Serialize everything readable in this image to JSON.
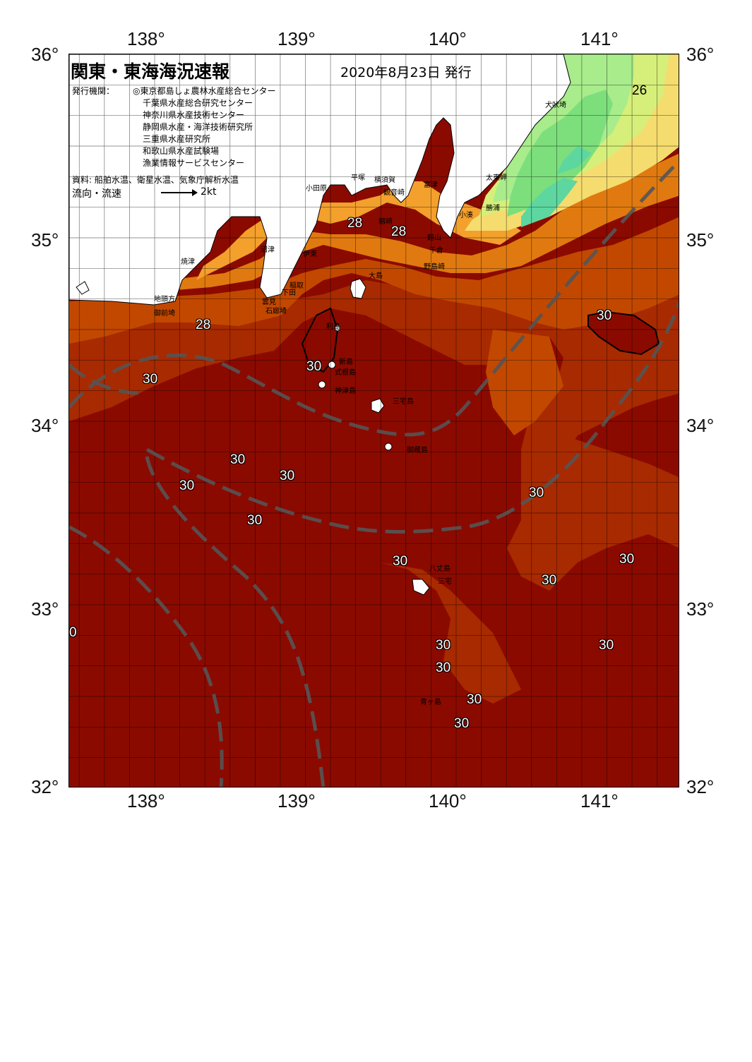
{
  "header": {
    "title": "関東・東海海況速報",
    "date": "2020年8月23日 発行",
    "agency_label": "発行機関：",
    "agencies": [
      "◎東京都島しょ農林水産総合センター",
      "千葉県水産総合研究センター",
      "神奈川県水産技術センター",
      "静岡県水産・海洋技術研究所",
      "三重県水産研究所",
      "和歌山県水産試験場",
      "漁業情報サービスセンター"
    ],
    "source": "資料: 船舶水温、衛星水温、気象庁解析水温",
    "flow_label": "流向・流速",
    "flow_scale": "2kt"
  },
  "axes": {
    "lon_top": [
      "138°",
      "139°",
      "140°",
      "141°"
    ],
    "lon_bottom": [
      "138°",
      "139°",
      "140°",
      "141°"
    ],
    "lat_left": [
      "36°",
      "35°",
      "34°",
      "33°",
      "32°"
    ],
    "lat_right": [
      "36°",
      "35°",
      "34°",
      "33°",
      "32°"
    ]
  },
  "temperature_labels": [
    "26",
    "28",
    "28",
    "28",
    "30",
    "30",
    "30",
    "30",
    "30",
    "30",
    "30",
    "30",
    "30",
    "30",
    "30",
    "30",
    "30",
    "30",
    "30",
    "30",
    "30",
    "0"
  ],
  "place_names": [
    "犬吠埼",
    "太東岬",
    "勝浦",
    "小湊",
    "富津",
    "観音崎",
    "剱崎",
    "館山",
    "千倉",
    "野島崎",
    "横須賀",
    "平塚",
    "小田原",
    "伊東",
    "大島",
    "稲取",
    "下田",
    "石廊埼",
    "雲見",
    "沼津",
    "焼津",
    "地頭方",
    "御前埼",
    "利島",
    "新島",
    "式根島",
    "神津島",
    "三宅島",
    "御蔵島",
    "八丈島",
    "三宅",
    "青ヶ島"
  ],
  "colors": {
    "deep_red": "#8b0a00",
    "red_brown": "#a82a00",
    "orange_dark": "#c24800",
    "orange": "#e07a10",
    "orange_light": "#f3a02c",
    "yellow": "#f5dc6e",
    "yellow_green": "#d6ef7a",
    "green_light": "#a8ec8c",
    "green": "#7cdf7c",
    "cyan_green": "#5ed6a0",
    "land": "#ffffff",
    "current_line": "#555555"
  }
}
